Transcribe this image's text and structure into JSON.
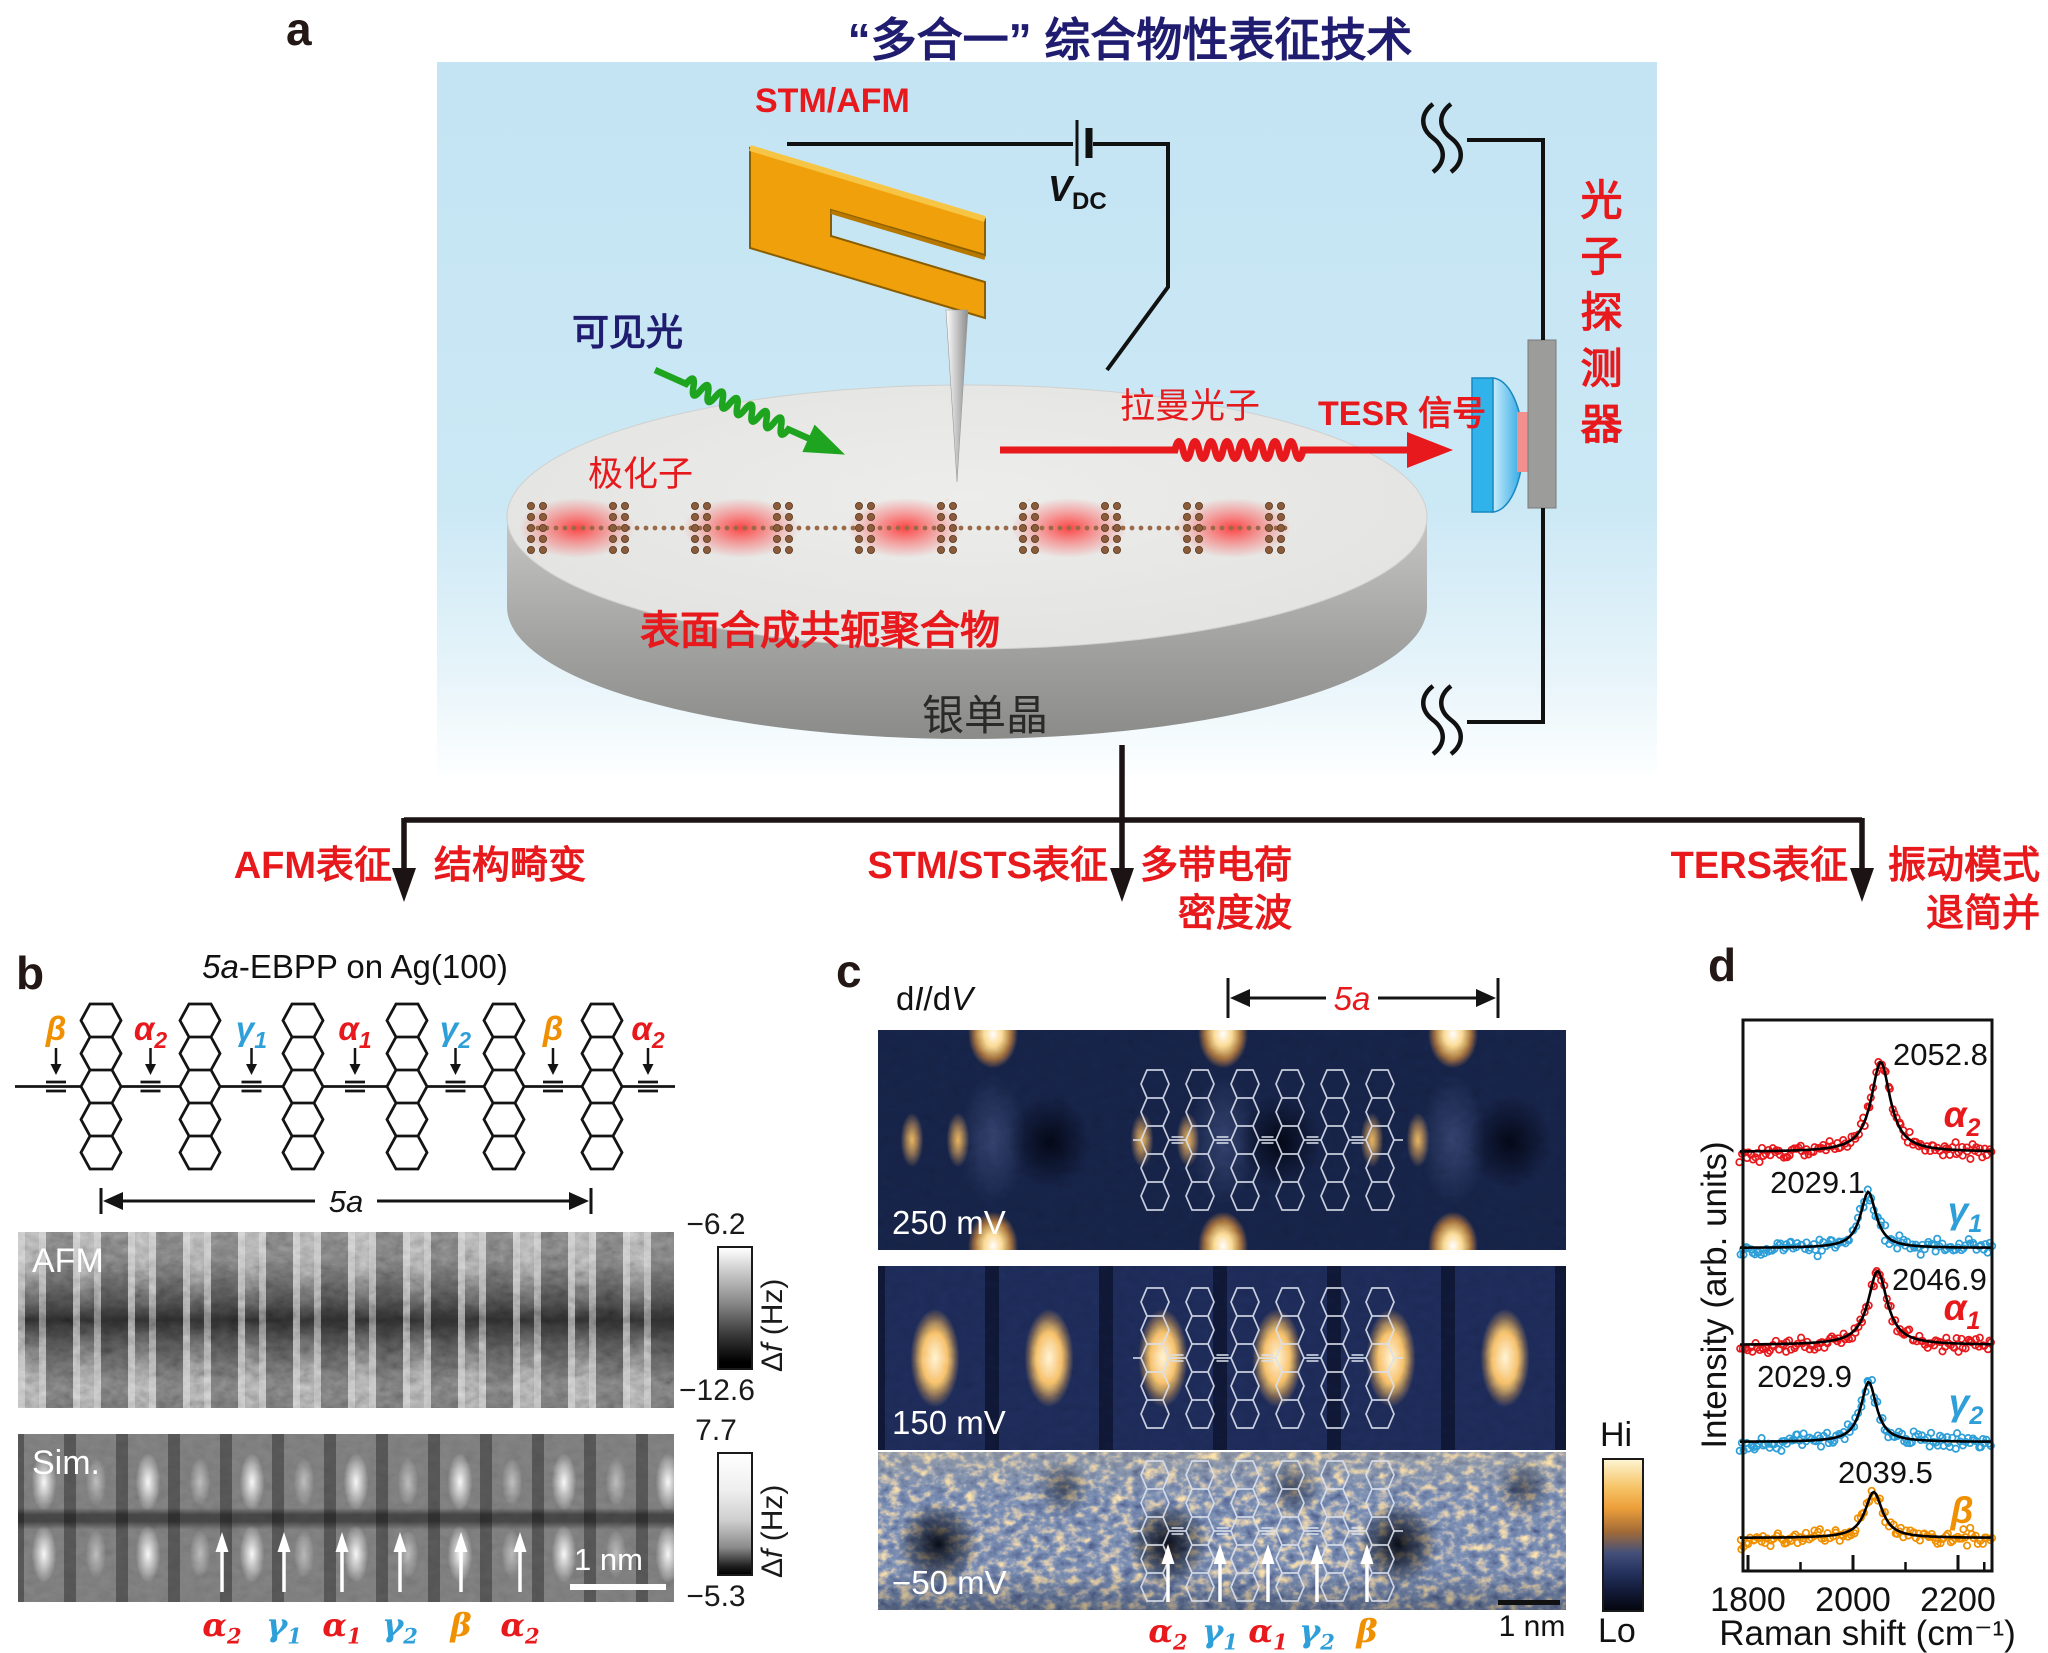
{
  "colors": {
    "red": "#e8191c",
    "blue": "#2e9fd8",
    "orange": "#f09000",
    "navy": "#201d70",
    "black": "#231815"
  },
  "header": {
    "panel_label": "a",
    "title": "“多合一” 综合物性表征技术"
  },
  "panel_a": {
    "stm_afm": "STM/AFM",
    "bias_v": "V",
    "bias_sub": "DC",
    "visible_light": "可见光",
    "polaron": "极化子",
    "raman_photon": "拉曼光子",
    "tesr_signal": "TESR 信号",
    "photon_detector": "光子探测器",
    "polymer": "表面合成共轭聚合物",
    "substrate": "银单晶"
  },
  "flow": {
    "branches": [
      {
        "method": "AFM表征",
        "result_lines": [
          "结构畸变"
        ]
      },
      {
        "method": "STM/STS表征",
        "result_lines": [
          "多带电荷",
          "密度波"
        ]
      },
      {
        "method": "TERS表征",
        "result_lines": [
          "振动模式",
          "退简并"
        ]
      }
    ]
  },
  "panel_b": {
    "panel_label": "b",
    "title_italic": "5a",
    "title_rest": "-EBPP on Ag(100)",
    "site_labels": [
      {
        "b": "β",
        "s": "",
        "c": "#f09000"
      },
      {
        "b": "α",
        "s": "2",
        "c": "#e8191c"
      },
      {
        "b": "γ",
        "s": "1",
        "c": "#2e9fd8"
      },
      {
        "b": "α",
        "s": "1",
        "c": "#e8191c"
      },
      {
        "b": "γ",
        "s": "2",
        "c": "#2e9fd8"
      },
      {
        "b": "β",
        "s": "",
        "c": "#f09000"
      },
      {
        "b": "α",
        "s": "2",
        "c": "#e8191c"
      }
    ],
    "span_label": "5a",
    "afm": {
      "label": "AFM",
      "cbar_top": "−6.2",
      "cbar_bottom": "−12.6"
    },
    "sim": {
      "label": "Sim.",
      "cbar_top": "7.7",
      "cbar_bottom": "−5.3"
    },
    "cbar_unit_delta": "Δ",
    "cbar_unit_f": "f",
    "cbar_unit_rest": " (Hz)",
    "scale_bar": "1 nm",
    "bottom_labels": [
      {
        "b": "α",
        "s": "2",
        "c": "#e8191c"
      },
      {
        "b": "γ",
        "s": "1",
        "c": "#2e9fd8"
      },
      {
        "b": "α",
        "s": "1",
        "c": "#e8191c"
      },
      {
        "b": "γ",
        "s": "2",
        "c": "#2e9fd8"
      },
      {
        "b": "β",
        "s": "",
        "c": "#f09000"
      },
      {
        "b": "α",
        "s": "2",
        "c": "#e8191c"
      }
    ]
  },
  "panel_c": {
    "panel_label": "c",
    "map_type_d1": "d",
    "map_type_i1": "I",
    "map_type_d2": "/d",
    "map_type_i2": "V",
    "span_label": "5a",
    "maps": [
      {
        "bias": "250 mV"
      },
      {
        "bias": "150 mV"
      },
      {
        "bias": "−50 mV"
      }
    ],
    "cbar_hi": "Hi",
    "cbar_lo": "Lo",
    "scale_bar": "1 nm",
    "bottom_labels": [
      {
        "b": "α",
        "s": "2",
        "c": "#e8191c"
      },
      {
        "b": "γ",
        "s": "1",
        "c": "#2e9fd8"
      },
      {
        "b": "α",
        "s": "1",
        "c": "#e8191c"
      },
      {
        "b": "γ",
        "s": "2",
        "c": "#2e9fd8"
      },
      {
        "b": "β",
        "s": "",
        "c": "#f09000"
      }
    ]
  },
  "panel_d": {
    "panel_label": "d"
  },
  "chart_data": {
    "type": "line",
    "xlabel": "Raman shift (cm⁻¹)",
    "ylabel": "Intensity (arb. units)",
    "xlim": [
      1790,
      2265
    ],
    "xticks": [
      1800,
      2000,
      2200
    ],
    "xticks_minor": [
      1900,
      2100,
      2250
    ],
    "grid": false,
    "series": [
      {
        "name_base": "α",
        "name_sub": "2",
        "color": "#e8191c",
        "peak": 2052.8,
        "peak_label": "2052.8",
        "amplitude": 0.9,
        "hwhm_cm": 22
      },
      {
        "name_base": "γ",
        "name_sub": "1",
        "color": "#2e9fd8",
        "peak": 2029.1,
        "peak_label": "2029.1",
        "amplitude": 0.56,
        "hwhm_cm": 18
      },
      {
        "name_base": "α",
        "name_sub": "1",
        "color": "#e8191c",
        "peak": 2046.9,
        "peak_label": "2046.9",
        "amplitude": 0.74,
        "hwhm_cm": 22
      },
      {
        "name_base": "γ",
        "name_sub": "2",
        "color": "#2e9fd8",
        "peak": 2029.9,
        "peak_label": "2029.9",
        "amplitude": 0.6,
        "hwhm_cm": 18
      },
      {
        "name_base": "β",
        "name_sub": "",
        "color": "#f09000",
        "peak": 2039.5,
        "peak_label": "2039.5",
        "amplitude": 0.46,
        "hwhm_cm": 20
      }
    ]
  }
}
